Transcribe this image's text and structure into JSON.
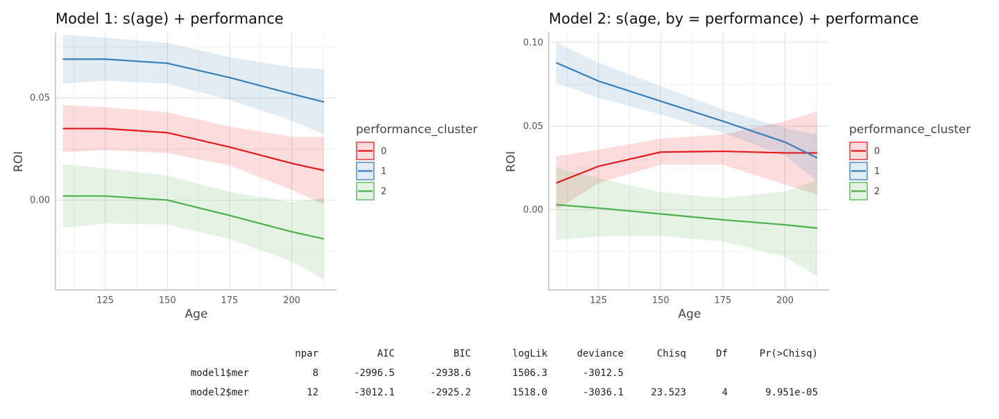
{
  "chart_data": [
    {
      "type": "line",
      "title": "Model 1: s(age) + performance",
      "xlabel": "Age",
      "ylabel": "ROI",
      "xlim": [
        105,
        218
      ],
      "ylim": [
        -0.044,
        0.082
      ],
      "xticks": [
        125,
        150,
        175,
        200
      ],
      "yticks": [
        0.0,
        0.05
      ],
      "ytick_labels": [
        "0.00",
        "0.05"
      ],
      "grid": true,
      "legend": {
        "title": "performance_cluster",
        "placement": "right"
      },
      "series": [
        {
          "name": "0",
          "color": "#e41a1c",
          "x": [
            108,
            125,
            150,
            175,
            200,
            213
          ],
          "y": [
            0.035,
            0.035,
            0.033,
            0.026,
            0.018,
            0.0145
          ],
          "lower": [
            0.0235,
            0.0245,
            0.023,
            0.017,
            0.005,
            -0.002
          ],
          "upper": [
            0.0465,
            0.0455,
            0.043,
            0.036,
            0.031,
            0.031
          ]
        },
        {
          "name": "1",
          "color": "#377eb8",
          "x": [
            108,
            125,
            150,
            175,
            200,
            213
          ],
          "y": [
            0.069,
            0.069,
            0.067,
            0.06,
            0.052,
            0.048
          ],
          "lower": [
            0.057,
            0.0585,
            0.057,
            0.049,
            0.039,
            0.032
          ],
          "upper": [
            0.081,
            0.0795,
            0.077,
            0.07,
            0.065,
            0.064
          ]
        },
        {
          "name": "2",
          "color": "#4daf4a",
          "x": [
            108,
            125,
            150,
            175,
            200,
            213
          ],
          "y": [
            0.002,
            0.002,
            0.0,
            -0.0075,
            -0.0155,
            -0.019
          ],
          "lower": [
            -0.0135,
            -0.0115,
            -0.012,
            -0.019,
            -0.03,
            -0.039
          ],
          "upper": [
            0.0175,
            0.0155,
            0.012,
            0.004,
            -0.001,
            0.001
          ]
        }
      ]
    },
    {
      "type": "line",
      "title": "Model 2: s(age, by = performance) + performance",
      "xlabel": "Age",
      "ylabel": "ROI",
      "xlim": [
        105,
        218
      ],
      "ylim": [
        -0.048,
        0.106
      ],
      "xticks": [
        125,
        150,
        175,
        200
      ],
      "yticks": [
        0.0,
        0.05,
        0.1
      ],
      "ytick_labels": [
        "0.00",
        "0.05",
        "0.10"
      ],
      "grid": true,
      "legend": {
        "title": "performance_cluster",
        "placement": "right"
      },
      "series": [
        {
          "name": "0",
          "color": "#e41a1c",
          "x": [
            108,
            125,
            150,
            175,
            200,
            213
          ],
          "y": [
            0.016,
            0.026,
            0.0345,
            0.035,
            0.034,
            0.034
          ],
          "lower": [
            0.0,
            0.016,
            0.027,
            0.027,
            0.015,
            0.009
          ],
          "upper": [
            0.032,
            0.036,
            0.0425,
            0.045,
            0.053,
            0.059
          ]
        },
        {
          "name": "1",
          "color": "#377eb8",
          "x": [
            108,
            125,
            150,
            175,
            200,
            213
          ],
          "y": [
            0.088,
            0.077,
            0.065,
            0.053,
            0.0405,
            0.031
          ],
          "lower": [
            0.076,
            0.067,
            0.057,
            0.046,
            0.0325,
            0.017
          ],
          "upper": [
            0.1,
            0.088,
            0.074,
            0.06,
            0.049,
            0.045
          ]
        },
        {
          "name": "2",
          "color": "#4daf4a",
          "x": [
            108,
            125,
            150,
            175,
            200,
            213
          ],
          "y": [
            0.003,
            0.001,
            -0.0025,
            -0.006,
            -0.009,
            -0.011
          ],
          "lower": [
            -0.018,
            -0.016,
            -0.0155,
            -0.019,
            -0.028,
            -0.04
          ],
          "upper": [
            0.025,
            0.019,
            0.0105,
            0.007,
            0.011,
            0.018
          ]
        }
      ]
    },
    {
      "type": "table",
      "columns": [
        "",
        "npar",
        "AIC",
        "BIC",
        "logLik",
        "deviance",
        "Chisq",
        "Df",
        "Pr(>Chisq)"
      ],
      "rows": [
        [
          "model1$mer",
          "8",
          "-2996.5",
          "-2938.6",
          "1506.3",
          "-3012.5",
          "",
          "",
          ""
        ],
        [
          "model2$mer",
          "12",
          "-3012.1",
          "-2925.2",
          "1518.0",
          "-3036.1",
          "23.523",
          "4",
          "9.951e-05"
        ]
      ]
    }
  ]
}
